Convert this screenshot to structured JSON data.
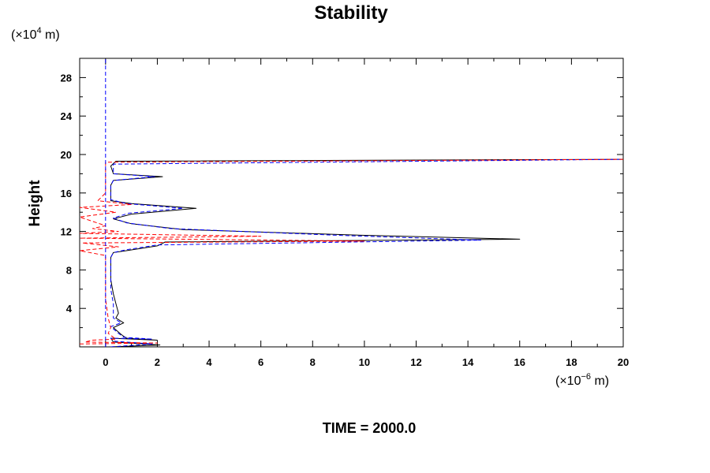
{
  "chart_data": {
    "type": "line",
    "title": "Stability",
    "ylabel": "Height",
    "y_unit_prefix": "(×10",
    "y_unit_exp": "4",
    "y_unit_suffix": " m)",
    "x_unit_prefix": "(×10",
    "x_unit_exp": "−6",
    "x_unit_suffix": " m)",
    "footer": "TIME = 2000.0",
    "xlim": [
      -1,
      20
    ],
    "ylim": [
      0,
      30
    ],
    "x_ticks": [
      0,
      2,
      4,
      6,
      8,
      10,
      12,
      14,
      16,
      18,
      20
    ],
    "y_ticks": [
      4,
      8,
      12,
      16,
      20,
      24,
      28
    ],
    "grid": false,
    "series": [
      {
        "color": "#000000",
        "style": "solid",
        "points": [
          [
            0.2,
            0.0
          ],
          [
            2.1,
            0.2
          ],
          [
            0.3,
            0.5
          ],
          [
            0.2,
            0.9
          ],
          [
            2.0,
            0.7
          ],
          [
            0.8,
            0.9
          ],
          [
            0.6,
            1.3
          ],
          [
            0.3,
            2.0
          ],
          [
            0.7,
            2.5
          ],
          [
            0.4,
            3.0
          ],
          [
            0.5,
            3.5
          ],
          [
            0.4,
            4.5
          ],
          [
            0.3,
            5.5
          ],
          [
            0.2,
            7.0
          ],
          [
            0.2,
            8.5
          ],
          [
            0.2,
            9.3
          ],
          [
            0.3,
            9.8
          ],
          [
            0.8,
            10.0
          ],
          [
            2.0,
            10.5
          ],
          [
            2.3,
            10.9
          ],
          [
            16.0,
            11.2
          ],
          [
            10.0,
            11.6
          ],
          [
            3.0,
            12.2
          ],
          [
            1.0,
            12.8
          ],
          [
            0.3,
            13.3
          ],
          [
            1.0,
            13.8
          ],
          [
            3.5,
            14.4
          ],
          [
            1.0,
            14.9
          ],
          [
            0.2,
            15.2
          ],
          [
            0.2,
            16.0
          ],
          [
            0.2,
            16.8
          ],
          [
            0.3,
            17.3
          ],
          [
            2.2,
            17.7
          ],
          [
            0.3,
            18.0
          ],
          [
            0.2,
            18.8
          ],
          [
            0.4,
            19.3
          ],
          [
            20.0,
            19.5
          ]
        ]
      },
      {
        "color": "#0000ff",
        "style": "dashed",
        "points": [
          [
            0.2,
            0.0
          ],
          [
            1.8,
            0.3
          ],
          [
            0.3,
            0.6
          ],
          [
            0.2,
            0.9
          ],
          [
            1.8,
            0.8
          ],
          [
            0.7,
            1.0
          ],
          [
            0.5,
            1.4
          ],
          [
            0.2,
            2.1
          ],
          [
            0.6,
            2.5
          ],
          [
            0.3,
            3.0
          ],
          [
            0.3,
            4.5
          ],
          [
            0.2,
            6.0
          ],
          [
            0.2,
            8.0
          ],
          [
            0.2,
            9.3
          ],
          [
            0.3,
            9.8
          ],
          [
            0.8,
            10.1
          ],
          [
            2.0,
            10.6
          ],
          [
            14.5,
            11.1
          ],
          [
            9.0,
            11.6
          ],
          [
            2.5,
            12.3
          ],
          [
            0.8,
            12.9
          ],
          [
            0.3,
            13.4
          ],
          [
            0.9,
            13.9
          ],
          [
            3.0,
            14.4
          ],
          [
            0.8,
            14.9
          ],
          [
            0.2,
            15.3
          ],
          [
            0.2,
            16.8
          ],
          [
            0.3,
            17.3
          ],
          [
            1.9,
            17.7
          ],
          [
            0.3,
            18.0
          ],
          [
            0.3,
            19.0
          ],
          [
            20.0,
            19.5
          ]
        ]
      },
      {
        "color": "#ff0000",
        "style": "dashed",
        "points": [
          [
            -1.0,
            0.3
          ],
          [
            2.0,
            0.4
          ],
          [
            -0.8,
            0.5
          ],
          [
            -0.5,
            0.7
          ],
          [
            0.4,
            0.8
          ],
          [
            0.1,
            1.4
          ],
          [
            0.2,
            2.0
          ],
          [
            0.1,
            3.0
          ],
          [
            0.0,
            5.0
          ],
          [
            0.0,
            8.0
          ],
          [
            0.0,
            9.5
          ],
          [
            -1.0,
            10.0
          ],
          [
            0.5,
            10.4
          ],
          [
            -0.9,
            10.8
          ],
          [
            10.0,
            11.0
          ],
          [
            -1.0,
            11.3
          ],
          [
            6.0,
            11.5
          ],
          [
            -1.0,
            11.8
          ],
          [
            0.5,
            12.0
          ],
          [
            -0.5,
            12.3
          ],
          [
            0.0,
            12.6
          ],
          [
            -1.0,
            13.5
          ],
          [
            0.4,
            14.0
          ],
          [
            -1.0,
            14.5
          ],
          [
            1.0,
            14.8
          ],
          [
            -0.3,
            15.2
          ],
          [
            0.0,
            16.0
          ],
          [
            0.0,
            18.0
          ],
          [
            0.0,
            19.2
          ],
          [
            20.0,
            19.5
          ]
        ]
      },
      {
        "color": "#0000ff",
        "style": "dashed",
        "points": [
          [
            0.0,
            0.0
          ],
          [
            0.0,
            30.0
          ]
        ]
      }
    ]
  }
}
